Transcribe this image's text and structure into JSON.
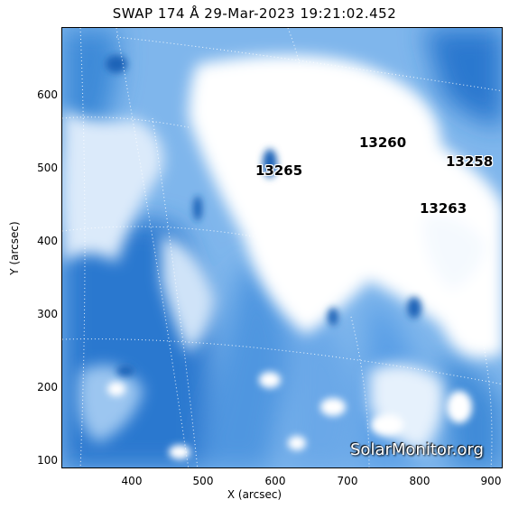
{
  "title": "SWAP 174 Å 29-Mar-2023 19:21:02.452",
  "axes": {
    "xlabel": "X (arcsec)",
    "ylabel": "Y (arcsec)",
    "x_ticks": [
      "400",
      "500",
      "600",
      "700",
      "800",
      "900"
    ],
    "y_ticks": [
      "100",
      "200",
      "300",
      "400",
      "500",
      "600"
    ]
  },
  "regions": [
    {
      "id": "13260",
      "label": "13260"
    },
    {
      "id": "13258",
      "label": "13258"
    },
    {
      "id": "13265",
      "label": "13265"
    },
    {
      "id": "13263",
      "label": "13263"
    }
  ],
  "watermark": "SolarMonitor.org",
  "colors": {
    "dark_blue": "#1f6bc4",
    "mid_blue": "#5aa2ea",
    "light_blue": "#bcd8f3",
    "white": "#ffffff"
  }
}
